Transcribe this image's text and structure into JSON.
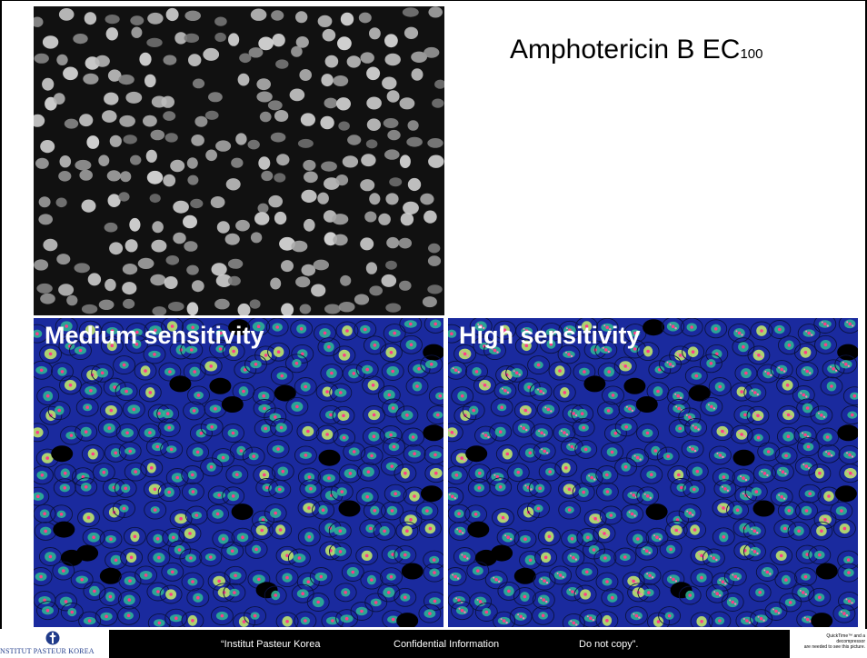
{
  "slide": {
    "title_main": "Amphotericin B EC",
    "title_sub": "100"
  },
  "panels": {
    "gray": {
      "icon": "grayscale-nuclei-micrograph"
    },
    "medium": {
      "label": "Medium sensitivity",
      "icon": "segmented-cells-micrograph"
    },
    "high": {
      "label": "High sensitivity",
      "icon": "segmented-cells-micrograph"
    }
  },
  "footer": {
    "org_text": "NSTITUT PASTEUR KOREA",
    "quote_org": "“Institut Pasteur Korea",
    "confidential": "Confidential Information",
    "do_not_copy": "Do not copy”.",
    "qt_line1": "QuickTime™ and a",
    "qt_line2": "decompressor",
    "qt_line3": "are needed to see this picture."
  },
  "colors": {
    "footer_bg": "#000000",
    "cell_bg": "#1a2a9e",
    "nucleus_green": "#3fd98a",
    "spot_pink": "#ff3b8a"
  }
}
